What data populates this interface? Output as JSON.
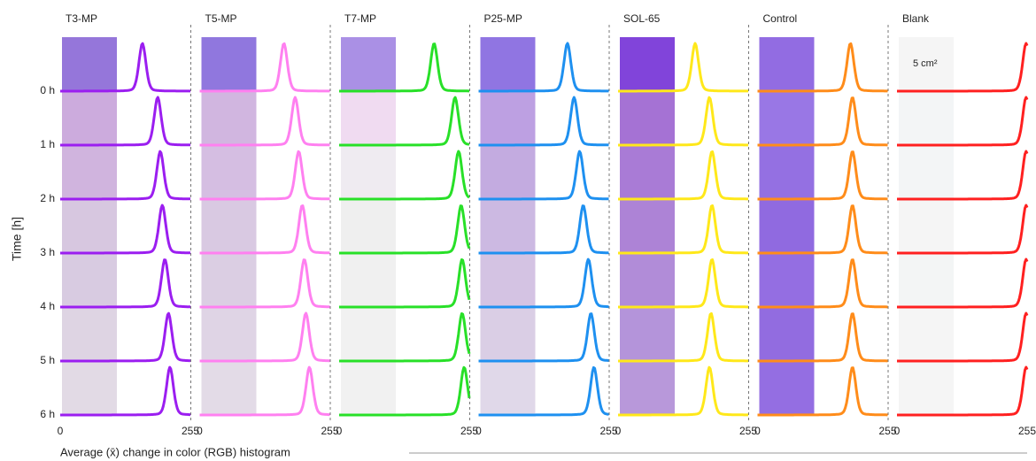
{
  "y_axis_label": "Time [h]",
  "x_axis_label": "Average (x̄) change in color (RGB) histogram",
  "times": [
    "0 h",
    "1 h",
    "2 h",
    "3 h",
    "4 h",
    "5 h",
    "6 h"
  ],
  "area_note": "5 cm²",
  "xlim": [
    0,
    255
  ],
  "panels": [
    {
      "title": "T3-MP",
      "color": "#9b1ef0",
      "xticks": [
        0,
        255
      ],
      "peaks": [
        161,
        191,
        196,
        200,
        205,
        212,
        215
      ],
      "photos": [
        "#8f6fd8",
        "#c9a6db",
        "#cdb0dc",
        "#d5c4de",
        "#d6c8df",
        "#dcd2e2",
        "#e0d8e4"
      ]
    },
    {
      "title": "T5-MP",
      "color": "#ff80f0",
      "xticks": [
        0,
        255
      ],
      "peaks": [
        165,
        187,
        194,
        201,
        205,
        208,
        215
      ],
      "photos": [
        "#8a70dc",
        "#cfb2de",
        "#d3bbe0",
        "#d7c6e0",
        "#d9cbe2",
        "#ddd2e4",
        "#e1d9e6"
      ]
    },
    {
      "title": "T7-MP",
      "color": "#28e028",
      "xticks": [
        0,
        255
      ],
      "peaks": [
        186,
        227,
        234,
        239,
        241,
        241,
        245
      ],
      "photos": [
        "#a58ae4",
        "#efd9f0",
        "#eeeaf0",
        "#eeeeee",
        "#efefef",
        "#f0f0f0",
        "#f0f0f0"
      ]
    },
    {
      "title": "P25-MP",
      "color": "#1e90f0",
      "xticks": [
        0,
        255
      ],
      "peaks": [
        174,
        187,
        198,
        205,
        215,
        220,
        226
      ],
      "photos": [
        "#8a6ee0",
        "#b99be0",
        "#c0a6de",
        "#c9b5e0",
        "#d2c0e2",
        "#d8cbe4",
        "#ded6e8"
      ]
    },
    {
      "title": "SOL-65",
      "color": "#ffe81a",
      "xticks": [
        0,
        255
      ],
      "peaks": [
        151,
        179,
        184,
        184,
        184,
        182,
        179
      ],
      "photos": [
        "#7a3ad8",
        "#a06ad2",
        "#a474d4",
        "#a97cd4",
        "#ad86d6",
        "#b08ed8",
        "#b492d8"
      ]
    },
    {
      "title": "Control",
      "color": "#ff8c1a",
      "xticks": [
        0,
        255
      ],
      "peaks": [
        182,
        186,
        186,
        186,
        186,
        186,
        186
      ],
      "photos": [
        "#8c64e0",
        "#9470e4",
        "#8e68e0",
        "#8a62de",
        "#8e66e0",
        "#8c64de",
        "#8e66e0"
      ]
    },
    {
      "title": "Blank",
      "color": "#ff2020",
      "xticks": [
        0,
        255
      ],
      "peaks": [
        253,
        253,
        253,
        253,
        253,
        253,
        253
      ],
      "photos": [
        "#f4f4f4",
        "#f2f4f6",
        "#f2f4f6",
        "#f4f4f4",
        "#f2f4f4",
        "#f4f4f4",
        "#f4f4f4"
      ]
    }
  ]
}
